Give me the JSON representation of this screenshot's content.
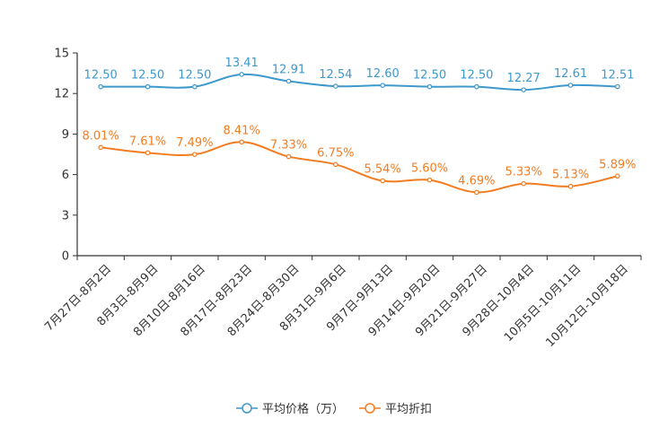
{
  "chart_data": {
    "type": "line",
    "title": "",
    "xlabel": "",
    "ylabel": "",
    "ylim": [
      0,
      15
    ],
    "yticks": [
      0,
      3,
      6,
      9,
      12,
      15
    ],
    "categories": [
      "7月27日-8月2日",
      "8月3日-8月9日",
      "8月10日-8月16日",
      "8月17日-8月23日",
      "8月24日-8月30日",
      "8月31日-9月6日",
      "9月7日-9月13日",
      "9月14日-9月20日",
      "9月21日-9月27日",
      "9月28日-10月4日",
      "10月5日-10月11日",
      "10月12日-10月18日"
    ],
    "series": [
      {
        "name": "平均价格（万）",
        "color": "#3d98cc",
        "values": [
          12.5,
          12.5,
          12.5,
          13.41,
          12.91,
          12.54,
          12.6,
          12.5,
          12.5,
          12.27,
          12.61,
          12.51
        ],
        "labels": [
          "12.50",
          "12.50",
          "12.50",
          "13.41",
          "12.91",
          "12.54",
          "12.60",
          "12.50",
          "12.50",
          "12.27",
          "12.61",
          "12.51"
        ]
      },
      {
        "name": "平均折扣",
        "color": "#f47c20",
        "values": [
          8.01,
          7.61,
          7.49,
          8.41,
          7.33,
          6.75,
          5.54,
          5.6,
          4.69,
          5.33,
          5.13,
          5.89
        ],
        "labels": [
          "8.01%",
          "7.61%",
          "7.49%",
          "8.41%",
          "7.33%",
          "6.75%",
          "5.54%",
          "5.60%",
          "4.69%",
          "5.33%",
          "5.13%",
          "5.89%"
        ]
      }
    ],
    "legend": "bottom-center",
    "grid": false
  }
}
